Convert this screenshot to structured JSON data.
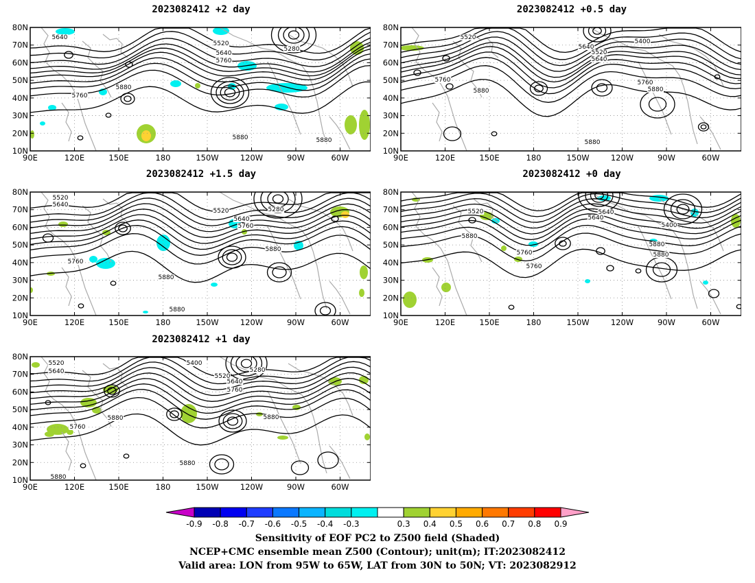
{
  "panels": [
    {
      "title": "2023082412 +2 day",
      "contour_labels": [
        "5640",
        "5520",
        "5280",
        "5640",
        "5760",
        "5760",
        "5880",
        "5880",
        "5880"
      ]
    },
    {
      "title": "2023082412 +0.5 day",
      "contour_labels": [
        "5520",
        "5640",
        "5400",
        "5520",
        "5640",
        "5760",
        "5880",
        "5760",
        "5880",
        "5880"
      ]
    },
    {
      "title": "2023082412 +1.5 day",
      "contour_labels": [
        "5520",
        "5640",
        "5520",
        "5280",
        "5640",
        "5760",
        "5760",
        "5880",
        "5880",
        "5880"
      ]
    },
    {
      "title": "2023082412 +0 day",
      "contour_labels": [
        "5520",
        "5640",
        "5400",
        "5640",
        "5880",
        "5760",
        "5760",
        "5880",
        "5880"
      ]
    },
    {
      "title": "2023082412 +1 day",
      "contour_labels": [
        "5520",
        "5640",
        "5400",
        "5280",
        "5520",
        "5640",
        "5760",
        "5760",
        "5880",
        "5880",
        "5880",
        "5880"
      ]
    }
  ],
  "axes": {
    "lat_ticks": [
      "80N",
      "70N",
      "60N",
      "50N",
      "40N",
      "30N",
      "20N",
      "10N"
    ],
    "lon_ticks": [
      "90E",
      "120E",
      "150E",
      "180",
      "150W",
      "120W",
      "90W",
      "60W"
    ]
  },
  "colorbar": {
    "ticks": [
      "-0.9",
      "-0.8",
      "-0.7",
      "-0.6",
      "-0.5",
      "-0.4",
      "-0.3",
      "0.3",
      "0.4",
      "0.5",
      "0.6",
      "0.7",
      "0.8",
      "0.9"
    ],
    "colors": [
      "#c800c8",
      "#0000b4",
      "#0000f0",
      "#1e3cff",
      "#0a78ff",
      "#0ab4ff",
      "#00dcdc",
      "#00f0f0",
      "#ffffff",
      "#a0d232",
      "#ffd232",
      "#ffaa00",
      "#ff7800",
      "#ff3c00",
      "#ff0000",
      "#ffa0c8"
    ]
  },
  "captions": {
    "line1": "Sensitivity of EOF PC2 to Z500 field (Shaded)",
    "line2": "NCEP+CMC ensemble mean Z500 (Contour); unit(m); IT:2023082412",
    "line3": "Valid area: LON from 95W to 65W, LAT from 30N to 50N; VT: 2023082912"
  }
}
